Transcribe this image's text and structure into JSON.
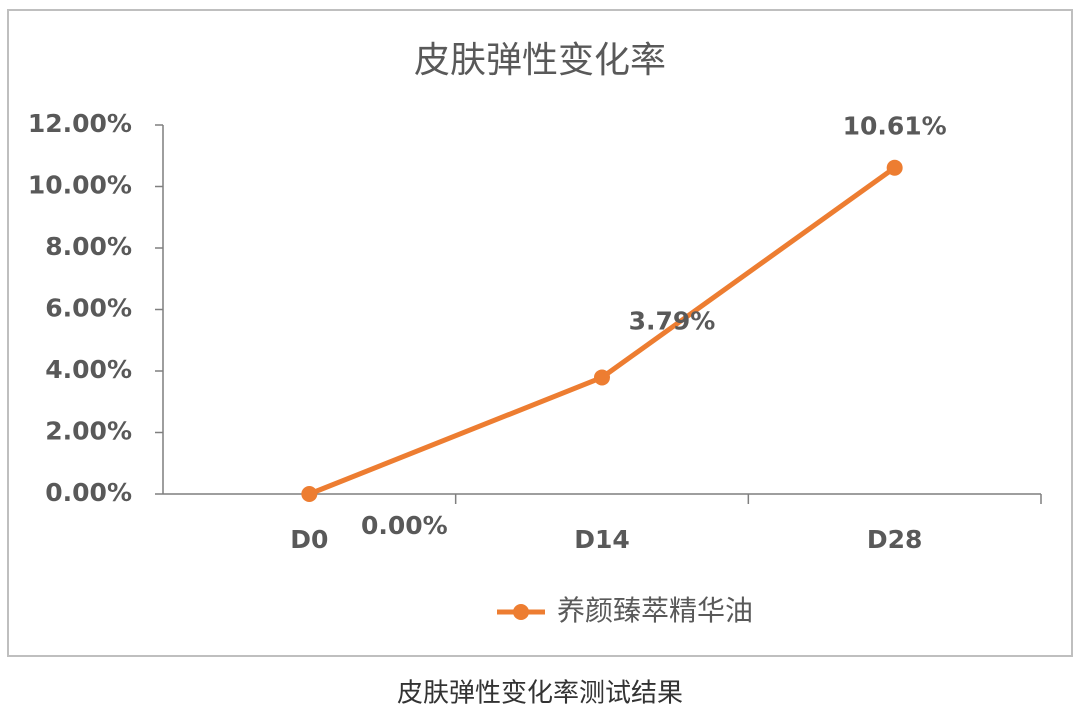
{
  "chart_data": {
    "type": "line",
    "title": "皮肤弹性变化率",
    "categories": [
      "D0",
      "D14",
      "D28"
    ],
    "series": [
      {
        "name": "养颜臻萃精华油",
        "color": "#ed7d31",
        "values": [
          0,
          3.79,
          10.61
        ],
        "value_labels": [
          "0.00%",
          "3.79%",
          "10.61%"
        ]
      }
    ],
    "ylim": [
      0,
      12
    ],
    "yticks": [
      {
        "value": 0,
        "label": "0.00%"
      },
      {
        "value": 2,
        "label": "2.00%"
      },
      {
        "value": 4,
        "label": "4.00%"
      },
      {
        "value": 6,
        "label": "6.00%"
      },
      {
        "value": 8,
        "label": "8.00%"
      },
      {
        "value": 10,
        "label": "10.00%"
      },
      {
        "value": 12,
        "label": "12.00%"
      }
    ],
    "legend": "bottom",
    "caption": "皮肤弹性变化率测试结果"
  }
}
